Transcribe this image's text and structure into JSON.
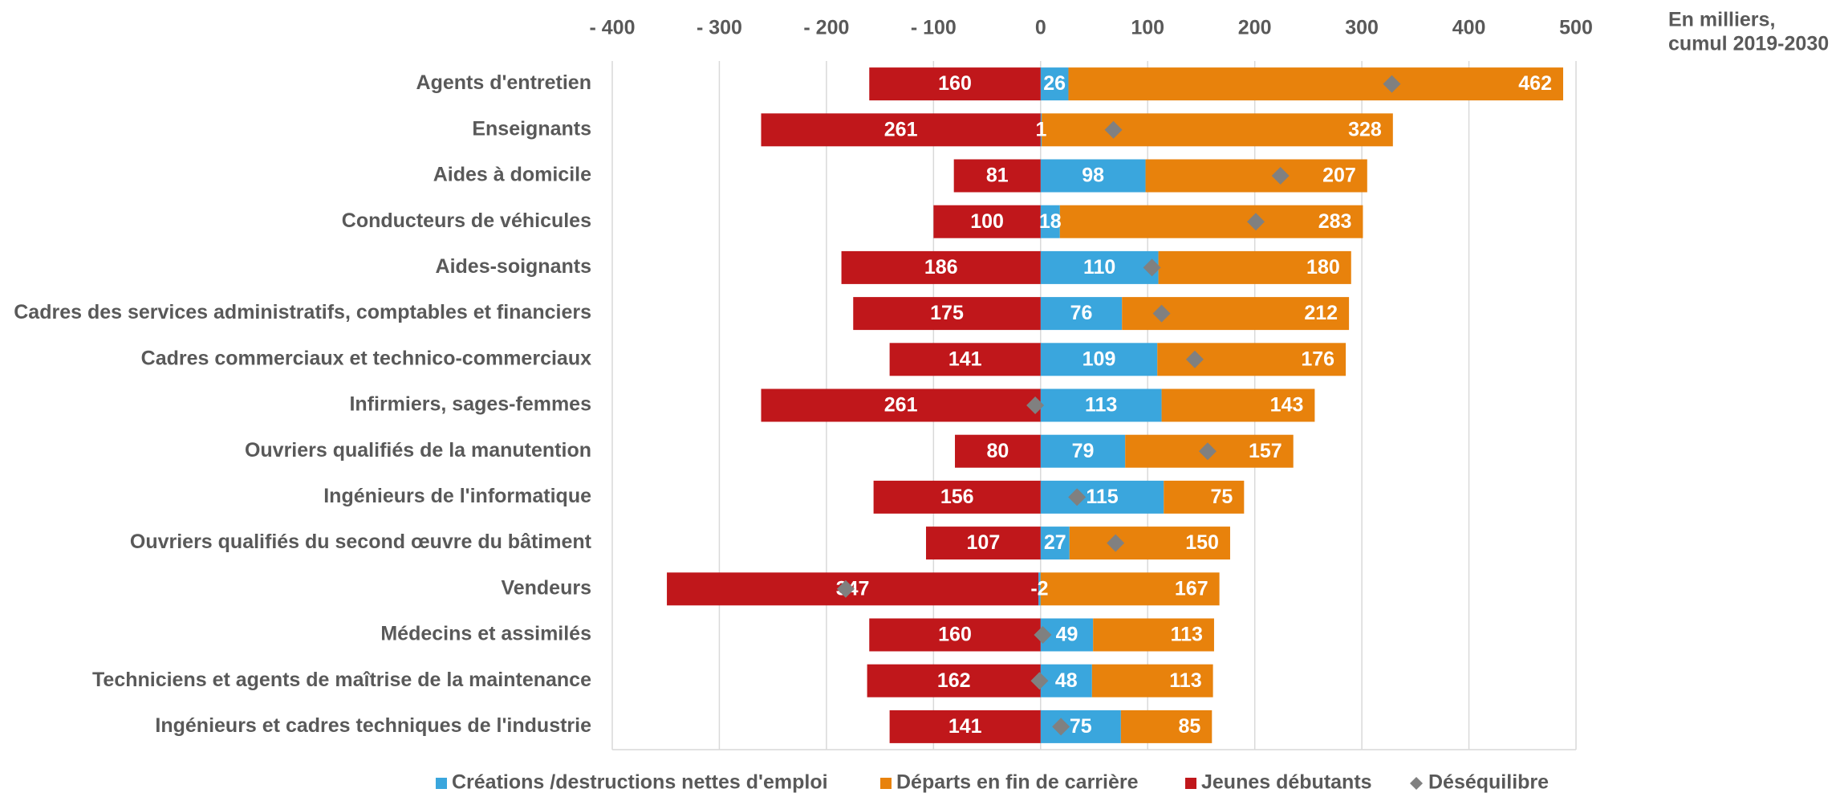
{
  "chart_data": {
    "type": "bar",
    "orientation": "horizontal",
    "note": [
      "En milliers,",
      "cumul 2019-2030"
    ],
    "categories": [
      "Agents d'entretien",
      "Enseignants",
      "Aides à domicile",
      "Conducteurs de véhicules",
      "Aides-soignants",
      "Cadres des services administratifs, comptables et financiers",
      "Cadres commerciaux et technico-commerciaux",
      "Infirmiers, sages-femmes",
      "Ouvriers qualifiés de la manutention",
      "Ingénieurs de l'informatique",
      "Ouvriers qualifiés du second œuvre du bâtiment",
      "Vendeurs",
      "Médecins et assimilés",
      "Techniciens et agents de maîtrise de la maintenance",
      "Ingénieurs et cadres techniques de l'industrie"
    ],
    "series": [
      {
        "name": "Créations /destructions nettes d'emploi",
        "color": "#3aa6dd",
        "values": [
          26,
          1,
          98,
          18,
          110,
          76,
          109,
          113,
          79,
          115,
          27,
          -2,
          49,
          48,
          75
        ]
      },
      {
        "name": "Départs en fin de carrière",
        "color": "#e8820c",
        "values": [
          462,
          328,
          207,
          283,
          180,
          212,
          176,
          143,
          157,
          75,
          150,
          167,
          113,
          113,
          85
        ]
      },
      {
        "name": "Jeunes débutants",
        "color": "#c0171b",
        "values": [
          -160,
          -261,
          -81,
          -100,
          -186,
          -175,
          -141,
          -261,
          -80,
          -156,
          -107,
          -347,
          -160,
          -162,
          -141
        ],
        "value_labels": [
          "160",
          "261",
          "81",
          "100",
          "186",
          "175",
          "141",
          "261",
          "80",
          "156",
          "107",
          "347",
          "160",
          "162",
          "141"
        ]
      },
      {
        "name": "Déséquilibre",
        "color": "#808080",
        "marker": "diamond",
        "values": [
          328,
          68,
          224,
          201,
          104,
          113,
          144,
          -5,
          156,
          34,
          70,
          -182,
          2,
          -1,
          19
        ]
      }
    ],
    "xlim": [
      -400,
      500
    ],
    "xticks": [
      {
        "value": -400,
        "label": "- 400"
      },
      {
        "value": -300,
        "label": "- 300"
      },
      {
        "value": -200,
        "label": "- 200"
      },
      {
        "value": -100,
        "label": "- 100"
      },
      0,
      100,
      200,
      300,
      400,
      500
    ],
    "grid": true,
    "legend": "bottom"
  }
}
